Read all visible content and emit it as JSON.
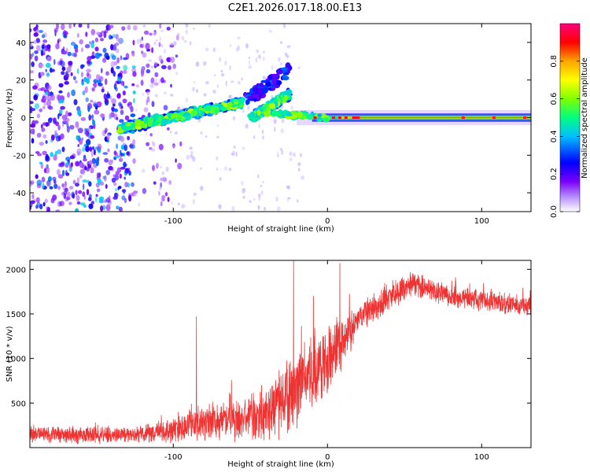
{
  "title": "C2E1.2026.017.18.00.E13",
  "colors": {
    "snr_line": "#ee3333",
    "frame": "#000000",
    "band_center": "#d63a8c"
  },
  "chart_data": [
    {
      "type": "heatmap",
      "name": "spectrogram",
      "xlabel": "Height of straight line (km)",
      "ylabel": "Frequency (Hz)",
      "xlim": [
        -193,
        132
      ],
      "ylim": [
        -50,
        50
      ],
      "x_ticks": [
        -100,
        0,
        100
      ],
      "x_tick_labels": [
        "-100",
        "0",
        "100"
      ],
      "y_ticks": [
        -40,
        -20,
        0,
        20,
        40
      ],
      "y_tick_labels": [
        "-40",
        "-20",
        "0",
        "20",
        "40"
      ],
      "colorbar": {
        "label": "Normalized spectral amplitude",
        "range": [
          0,
          1
        ],
        "ticks": [
          0,
          0.2,
          0.4,
          0.6,
          0.8
        ],
        "tick_labels": [
          "0.0",
          "0.2",
          "0.4",
          "0.6",
          "0.8"
        ],
        "colormap": [
          "#ffffff",
          "#7a00ff",
          "#0000ff",
          "#00bfff",
          "#00ff80",
          "#80ff00",
          "#ffff00",
          "#ffa500",
          "#ff0000",
          "#ff0080"
        ]
      },
      "features": {
        "noise_region_x": [
          -193,
          -125
        ],
        "branch_1": {
          "x": [
            -135,
            -55
          ],
          "y": [
            -6,
            8
          ]
        },
        "branch_2": {
          "x": [
            -50,
            -25
          ],
          "y": [
            0,
            12
          ]
        },
        "upper_faint_branch": {
          "x": [
            -55,
            -25
          ],
          "y": [
            8,
            25
          ]
        },
        "carrier_line": {
          "x": [
            0,
            132
          ],
          "y": 0,
          "amplitude_range": [
            0.4,
            1.0
          ]
        }
      }
    },
    {
      "type": "line",
      "name": "snr",
      "xlabel": "Height of straight line (km)",
      "ylabel": "SNR (10 * v/v)",
      "xlim": [
        -193,
        132
      ],
      "ylim": [
        0,
        2100
      ],
      "x_ticks": [
        -100,
        0,
        100
      ],
      "x_tick_labels": [
        "-100",
        "0",
        "100"
      ],
      "y_ticks": [
        500,
        1000,
        1500,
        2000
      ],
      "y_tick_labels": [
        "500",
        "1000",
        "1500",
        "2000"
      ],
      "profile_x": [
        -193,
        -150,
        -120,
        -100,
        -80,
        -60,
        -45,
        -30,
        -20,
        -10,
        0,
        10,
        20,
        40,
        55,
        65,
        80,
        100,
        132
      ],
      "profile_y": [
        150,
        140,
        150,
        200,
        300,
        300,
        350,
        500,
        650,
        850,
        1000,
        1200,
        1450,
        1700,
        1830,
        1780,
        1700,
        1650,
        1580
      ],
      "profile_noise": [
        120,
        110,
        110,
        180,
        230,
        260,
        300,
        420,
        480,
        480,
        450,
        350,
        200,
        180,
        150,
        150,
        140,
        140,
        120
      ],
      "notable_peaks": [
        {
          "x": -85,
          "y": 1470
        },
        {
          "x": -22,
          "y": 2100
        },
        {
          "x": 8,
          "y": 2070
        }
      ]
    }
  ]
}
